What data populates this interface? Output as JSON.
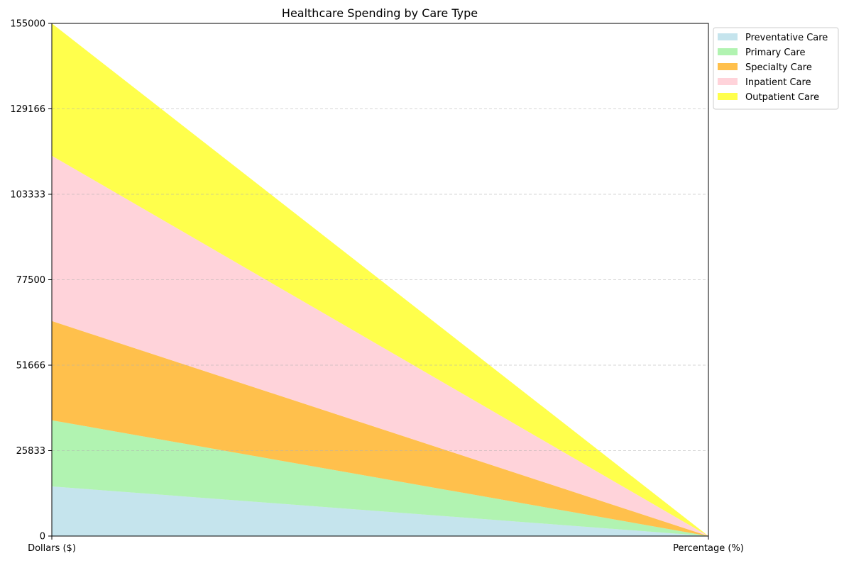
{
  "chart_data": {
    "type": "area",
    "stacked": true,
    "title": "Healthcare Spending by Care Type",
    "xlabel": "",
    "ylabel": "",
    "categories": [
      "Dollars ($)",
      "Percentage (%)"
    ],
    "ylim": [
      0,
      155000
    ],
    "yticks": [
      0,
      25833,
      51666,
      77500,
      103333,
      129166,
      155000
    ],
    "grid": "y-dashed",
    "legend_position": "outside-top-right",
    "series": [
      {
        "name": "Preventative Care",
        "values": [
          15000,
          0
        ],
        "color": "#ADD8E6"
      },
      {
        "name": "Primary Care",
        "values": [
          20000,
          0
        ],
        "color": "#90EE90"
      },
      {
        "name": "Specialty Care",
        "values": [
          30000,
          0
        ],
        "color": "#FFA500"
      },
      {
        "name": "Inpatient Care",
        "values": [
          50000,
          0
        ],
        "color": "#FFC0CB"
      },
      {
        "name": "Outpatient Care",
        "values": [
          40000,
          0
        ],
        "color": "#FFFF00"
      }
    ]
  }
}
